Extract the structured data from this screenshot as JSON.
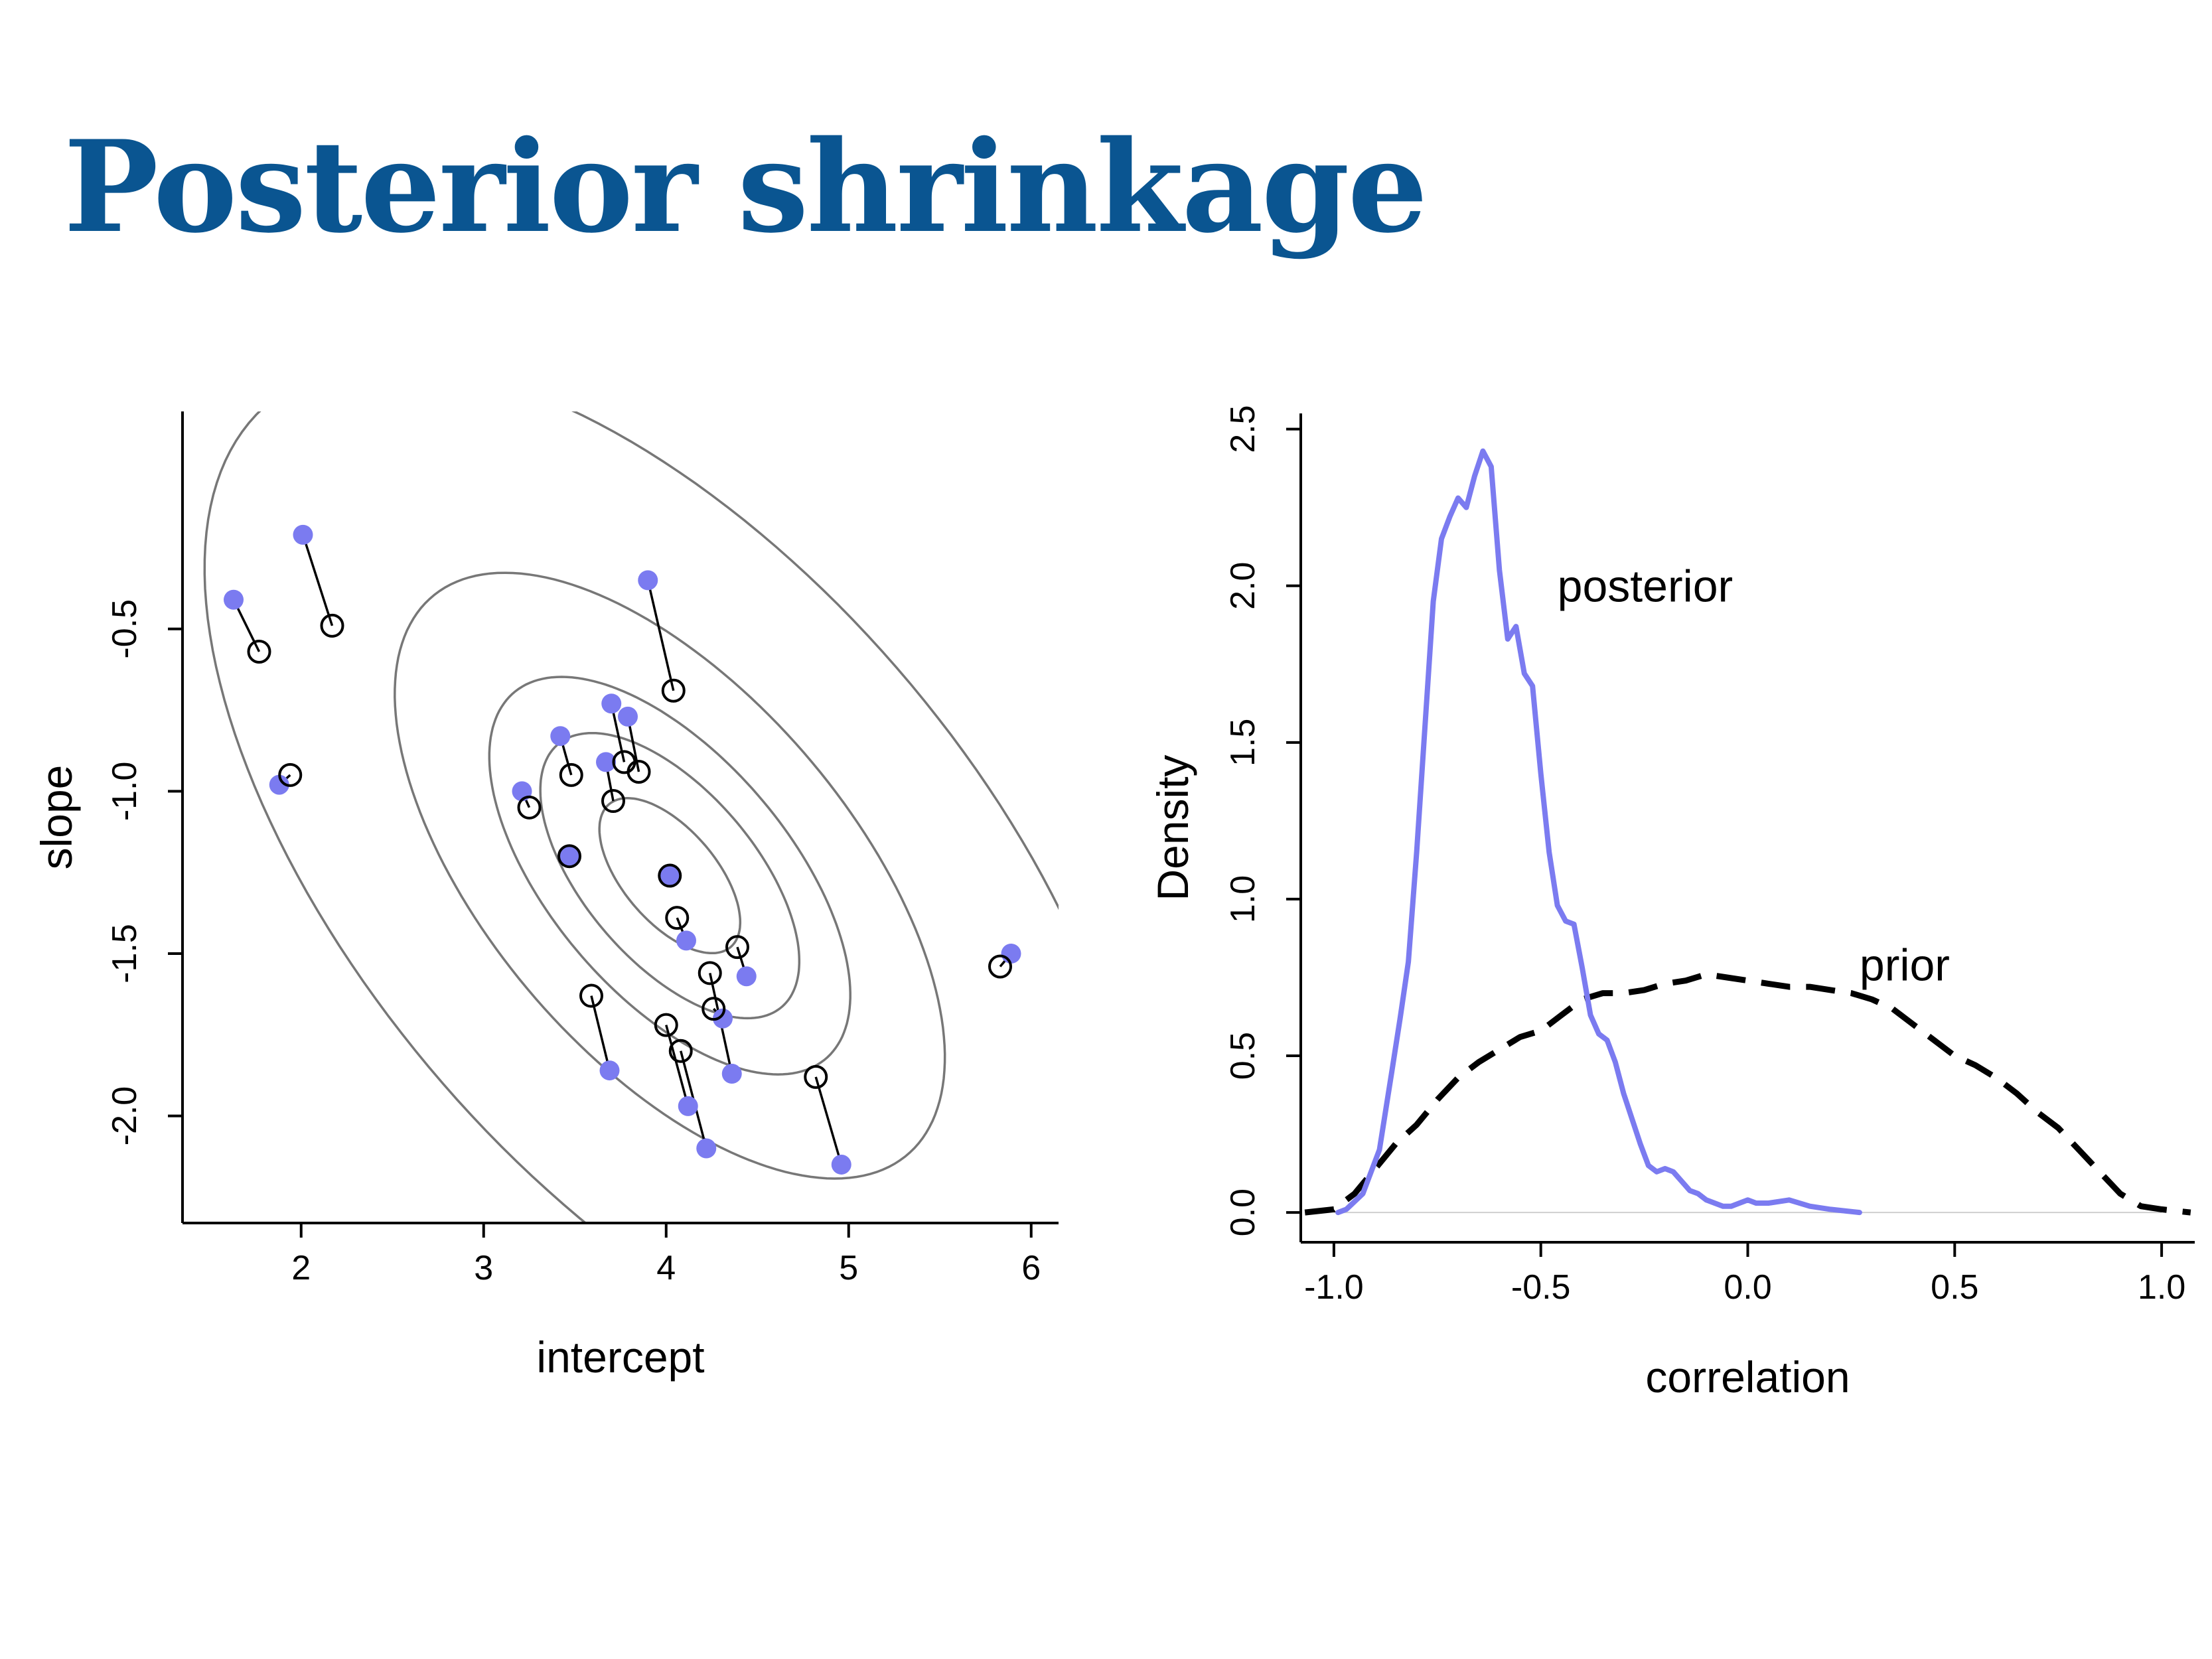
{
  "title": "Posterior shrinkage",
  "colors": {
    "title": "#0a5591",
    "posterior": "#7b7bf0",
    "contour": "#777777",
    "axis": "#000000"
  },
  "chart_data": [
    {
      "type": "scatter",
      "xlabel": "intercept",
      "ylabel": "slope",
      "xlim": [
        1.35,
        6.15
      ],
      "ylim": [
        -2.33,
        0.17
      ],
      "x_ticks": [
        2,
        3,
        4,
        5,
        6
      ],
      "y_ticks": [
        -2.0,
        -1.5,
        -1.0,
        -0.5
      ],
      "x_tick_labels": [
        "2",
        "3",
        "4",
        "5",
        "6"
      ],
      "y_tick_labels": [
        "-2.0",
        "-1.5",
        "-1.0",
        "-0.5"
      ],
      "contours": {
        "center": [
          4.02,
          -1.26
        ],
        "levels": [
          0.1,
          0.3,
          0.5,
          0.8,
          0.99
        ],
        "sd_intercept": 0.84,
        "sd_slope": 0.52,
        "correlation": -0.6
      },
      "series": [
        {
          "name": "",
          "style": "filled-blue",
          "points": [
            [
              1.63,
              -0.41
            ],
            [
              2.01,
              -0.21
            ],
            [
              1.88,
              -0.98
            ],
            [
              3.9,
              -0.35
            ],
            [
              3.7,
              -0.73
            ],
            [
              3.79,
              -0.77
            ],
            [
              3.42,
              -0.83
            ],
            [
              3.67,
              -0.91
            ],
            [
              3.21,
              -1.0
            ],
            [
              3.47,
              -1.2
            ],
            [
              4.02,
              -1.26
            ],
            [
              4.11,
              -1.46
            ],
            [
              4.44,
              -1.57
            ],
            [
              4.31,
              -1.7
            ],
            [
              4.36,
              -1.87
            ],
            [
              3.69,
              -1.86
            ],
            [
              4.12,
              -1.97
            ],
            [
              4.22,
              -2.1
            ],
            [
              4.96,
              -2.15
            ],
            [
              5.89,
              -1.5
            ]
          ]
        },
        {
          "name": "",
          "style": "open-black",
          "points": [
            [
              1.77,
              -0.57
            ],
            [
              2.17,
              -0.49
            ],
            [
              1.94,
              -0.95
            ],
            [
              4.04,
              -0.69
            ],
            [
              3.77,
              -0.91
            ],
            [
              3.85,
              -0.94
            ],
            [
              3.48,
              -0.95
            ],
            [
              3.71,
              -1.03
            ],
            [
              3.25,
              -1.05
            ],
            [
              3.47,
              -1.2
            ],
            [
              4.02,
              -1.26
            ],
            [
              4.06,
              -1.39
            ],
            [
              4.39,
              -1.48
            ],
            [
              4.26,
              -1.67
            ],
            [
              4.24,
              -1.56
            ],
            [
              3.59,
              -1.63
            ],
            [
              4.0,
              -1.72
            ],
            [
              4.08,
              -1.8
            ],
            [
              4.82,
              -1.88
            ],
            [
              5.83,
              -1.54
            ]
          ]
        }
      ]
    },
    {
      "type": "line",
      "xlabel": "correlation",
      "ylabel": "Density",
      "xlim": [
        -1.08,
        1.08
      ],
      "ylim": [
        -0.095,
        2.55
      ],
      "x_ticks": [
        -1.0,
        -0.5,
        0.0,
        0.5,
        1.0
      ],
      "y_ticks": [
        0.0,
        0.5,
        1.0,
        1.5,
        2.0,
        2.5
      ],
      "x_tick_labels": [
        "-1.0",
        "-0.5",
        "0.0",
        "0.5",
        "1.0"
      ],
      "y_tick_labels": [
        "0.0",
        "0.5",
        "1.0",
        "1.5",
        "2.0",
        "2.5"
      ],
      "series": [
        {
          "name": "posterior",
          "x": [
            -0.99,
            -0.97,
            -0.93,
            -0.89,
            -0.86,
            -0.84,
            -0.82,
            -0.8,
            -0.78,
            -0.76,
            -0.74,
            -0.72,
            -0.7,
            -0.68,
            -0.66,
            -0.64,
            -0.62,
            -0.6,
            -0.58,
            -0.56,
            -0.54,
            -0.52,
            -0.5,
            -0.48,
            -0.46,
            -0.44,
            -0.42,
            -0.4,
            -0.38,
            -0.36,
            -0.34,
            -0.32,
            -0.3,
            -0.28,
            -0.26,
            -0.24,
            -0.22,
            -0.2,
            -0.18,
            -0.16,
            -0.14,
            -0.12,
            -0.1,
            -0.08,
            -0.06,
            -0.04,
            -0.02,
            0.0,
            0.02,
            0.05,
            0.1,
            0.15,
            0.2,
            0.27
          ],
          "y": [
            0.0,
            0.01,
            0.06,
            0.2,
            0.45,
            0.62,
            0.8,
            1.15,
            1.55,
            1.95,
            2.15,
            2.22,
            2.28,
            2.25,
            2.35,
            2.43,
            2.38,
            2.05,
            1.83,
            1.87,
            1.72,
            1.68,
            1.4,
            1.15,
            0.98,
            0.93,
            0.92,
            0.78,
            0.63,
            0.57,
            0.55,
            0.48,
            0.38,
            0.3,
            0.22,
            0.15,
            0.13,
            0.14,
            0.13,
            0.1,
            0.07,
            0.06,
            0.04,
            0.03,
            0.02,
            0.02,
            0.03,
            0.04,
            0.03,
            0.03,
            0.04,
            0.02,
            0.01,
            0.0
          ]
        },
        {
          "name": "prior",
          "x": [
            -1.07,
            -1.0,
            -0.95,
            -0.9,
            -0.85,
            -0.8,
            -0.75,
            -0.7,
            -0.65,
            -0.6,
            -0.55,
            -0.5,
            -0.45,
            -0.4,
            -0.35,
            -0.3,
            -0.25,
            -0.2,
            -0.15,
            -0.1,
            -0.05,
            0.0,
            0.05,
            0.1,
            0.15,
            0.2,
            0.25,
            0.3,
            0.35,
            0.4,
            0.45,
            0.5,
            0.55,
            0.6,
            0.65,
            0.7,
            0.75,
            0.8,
            0.85,
            0.9,
            0.95,
            1.0,
            1.07
          ],
          "y": [
            0.0,
            0.01,
            0.06,
            0.14,
            0.22,
            0.28,
            0.36,
            0.43,
            0.48,
            0.52,
            0.56,
            0.58,
            0.63,
            0.68,
            0.7,
            0.7,
            0.71,
            0.73,
            0.74,
            0.76,
            0.75,
            0.74,
            0.73,
            0.72,
            0.72,
            0.71,
            0.7,
            0.68,
            0.65,
            0.6,
            0.55,
            0.5,
            0.47,
            0.43,
            0.38,
            0.32,
            0.27,
            0.2,
            0.13,
            0.06,
            0.02,
            0.01,
            0.0
          ]
        }
      ],
      "labels": {
        "posterior": "posterior",
        "prior": "prior"
      }
    }
  ]
}
